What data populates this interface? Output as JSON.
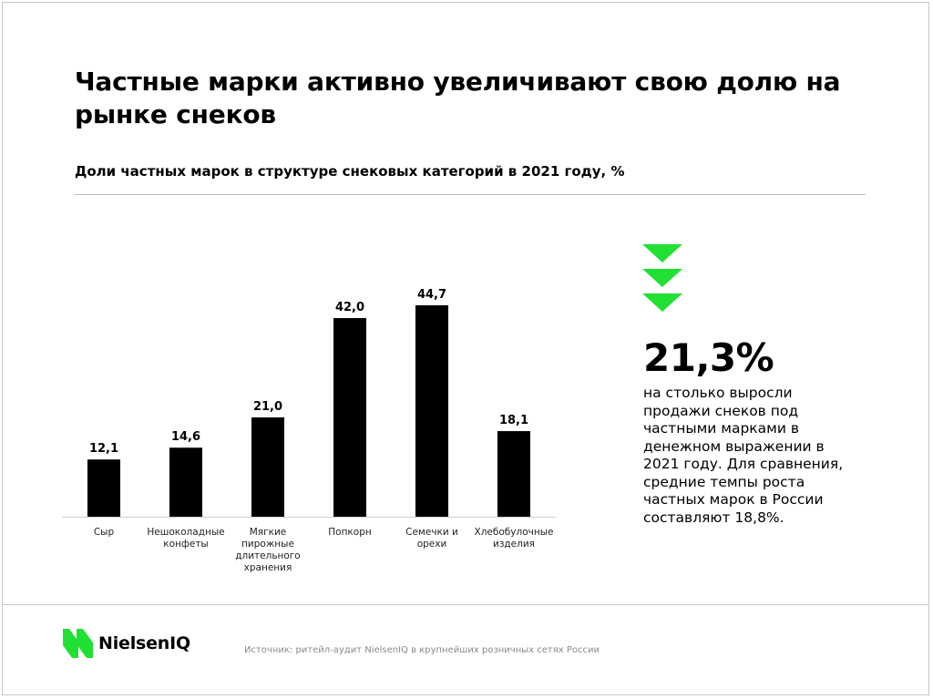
{
  "title": "Частные марки активно увеличивают свою долю на рынке снеков",
  "subtitle": "Доли частных марок в структуре снековых категорий в 2021 году, %",
  "colors": {
    "bar": "#000000",
    "accent": "#22e033",
    "baseline": "#cfcfcf"
  },
  "chart_data": {
    "type": "bar",
    "title": "Доли частных марок в структуре снековых категорий в 2021 году, %",
    "categories": [
      [
        "Сыр"
      ],
      [
        "Нешоколадные",
        "конфеты"
      ],
      [
        "Мягкие",
        "пирожные",
        "длительного",
        "хранения"
      ],
      [
        "Попкорн"
      ],
      [
        "Семечки и",
        "орехи"
      ],
      [
        "Хлебобулочные",
        "изделия"
      ]
    ],
    "values": [
      12.1,
      14.6,
      21.0,
      42.0,
      44.7,
      18.1
    ],
    "value_labels": [
      "12,1",
      "14,6",
      "21,0",
      "42,0",
      "44,7",
      "18,1"
    ],
    "xlabel": "",
    "ylabel": "",
    "ylim": [
      0,
      44.7
    ],
    "grid": false,
    "legend": "none"
  },
  "callout": {
    "icon": "triple-chevron-down-icon",
    "value": "21,3%",
    "text": "на столько выросли продажи снеков под частными марками в денежном выражении в 2021 году. Для сравнения, средние темпы роста частных марок в России составляют 18,8%."
  },
  "footer": {
    "logo_text": "NielsenIQ",
    "logo_icon": "nielseniq-logo-icon",
    "source": "Источник:  ритейл-аудит NielsenIQ в крупнейших розничных сетях России"
  }
}
